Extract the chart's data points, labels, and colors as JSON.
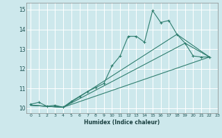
{
  "bg_color": "#cde8ec",
  "grid_color": "#b0d4d8",
  "line_color": "#2e7d6e",
  "xlabel": "Humidex (Indice chaleur)",
  "xlim": [
    -0.5,
    23
  ],
  "ylim": [
    9.75,
    15.35
  ],
  "yticks": [
    10,
    11,
    12,
    13,
    14,
    15
  ],
  "xticks": [
    0,
    1,
    2,
    3,
    4,
    5,
    6,
    7,
    8,
    9,
    10,
    11,
    12,
    13,
    14,
    15,
    16,
    17,
    18,
    19,
    20,
    21,
    22,
    23
  ],
  "series1_x": [
    0,
    1,
    2,
    3,
    4,
    5,
    6,
    7,
    8,
    9,
    10,
    11,
    12,
    13,
    14,
    15,
    16,
    17,
    18,
    19,
    20,
    21,
    22
  ],
  "series1_y": [
    10.2,
    10.3,
    10.1,
    10.15,
    10.05,
    10.35,
    10.6,
    10.85,
    11.05,
    11.25,
    12.15,
    12.65,
    13.65,
    13.65,
    13.35,
    14.95,
    14.35,
    14.45,
    13.75,
    13.3,
    12.65,
    12.6,
    12.6
  ],
  "series2_x": [
    0,
    4,
    19,
    22
  ],
  "series2_y": [
    10.15,
    10.05,
    13.3,
    12.6
  ],
  "series3_x": [
    0,
    4,
    18,
    22
  ],
  "series3_y": [
    10.15,
    10.05,
    13.75,
    12.6
  ],
  "series4_x": [
    0,
    4,
    22
  ],
  "series4_y": [
    10.15,
    10.05,
    12.6
  ]
}
